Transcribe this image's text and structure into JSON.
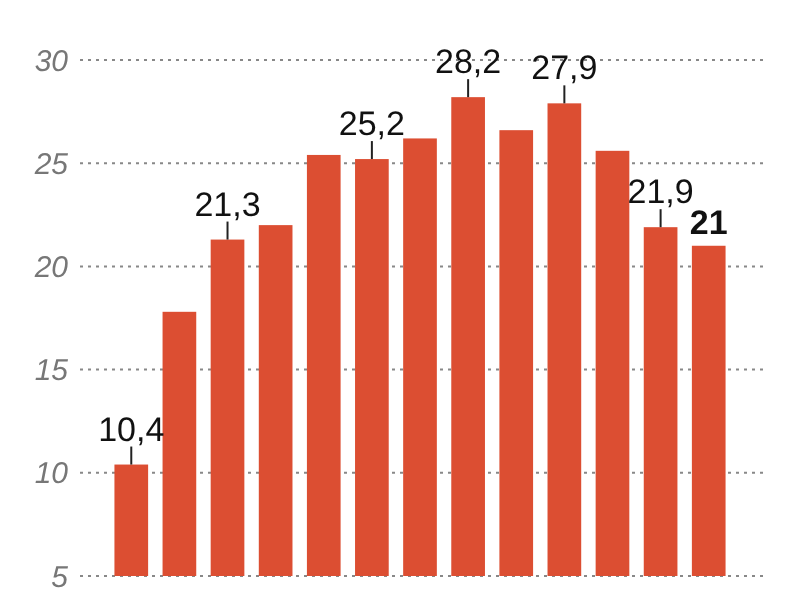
{
  "chart_data": {
    "type": "bar",
    "categories": [
      null,
      null,
      null,
      null,
      null,
      null,
      null,
      null,
      null,
      null,
      null,
      null,
      null
    ],
    "values": [
      10.4,
      17.8,
      21.3,
      22.0,
      25.4,
      25.2,
      26.2,
      28.2,
      26.6,
      27.9,
      25.6,
      21.9,
      21
    ],
    "value_labels": [
      "10,4",
      null,
      "21,3",
      null,
      null,
      "25,2",
      null,
      "28,2",
      null,
      "27,9",
      null,
      "21,9",
      "21"
    ],
    "color": "#dc4e32",
    "ylim": [
      5,
      30
    ],
    "yticks": [
      5,
      10,
      15,
      20,
      25,
      30
    ],
    "grid": "y"
  }
}
